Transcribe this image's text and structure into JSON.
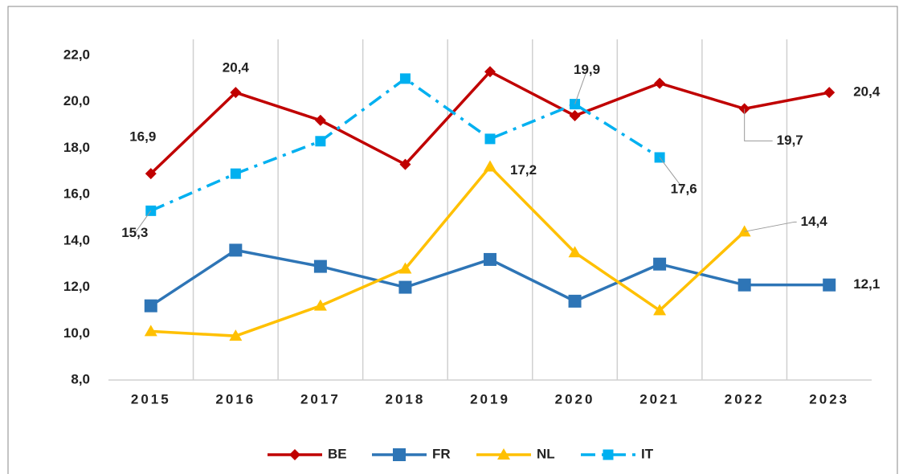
{
  "chart_data": {
    "type": "line",
    "categories": [
      "2015",
      "2016",
      "2017",
      "2018",
      "2019",
      "2020",
      "2021",
      "2022",
      "2023"
    ],
    "series": [
      {
        "name": "BE",
        "color": "#c00000",
        "marker": "diamond",
        "dash": "solid",
        "values": [
          16.9,
          20.4,
          19.2,
          17.3,
          21.3,
          19.4,
          20.8,
          19.7,
          20.4
        ],
        "value_labels": [
          "16,9",
          "20,4",
          null,
          null,
          null,
          null,
          null,
          "19,7",
          "20,4"
        ]
      },
      {
        "name": "FR",
        "color": "#2e75b6",
        "marker": "square",
        "dash": "solid",
        "values": [
          11.2,
          13.6,
          12.9,
          12.0,
          13.2,
          11.4,
          13.0,
          12.1,
          12.1
        ],
        "value_labels": [
          null,
          null,
          null,
          null,
          null,
          null,
          null,
          null,
          "12,1"
        ]
      },
      {
        "name": "NL",
        "color": "#ffc000",
        "marker": "triangle",
        "dash": "solid",
        "values": [
          10.1,
          9.9,
          11.2,
          12.8,
          17.2,
          13.5,
          11.0,
          14.4,
          null
        ],
        "value_labels": [
          null,
          null,
          null,
          null,
          "17,2",
          null,
          null,
          "14,4",
          null
        ]
      },
      {
        "name": "IT",
        "color": "#00b0f0",
        "marker": "square",
        "dash": "dashdot",
        "values": [
          15.3,
          16.9,
          18.3,
          21.0,
          18.4,
          19.9,
          17.6,
          null,
          null
        ],
        "value_labels": [
          "15,3",
          null,
          null,
          null,
          null,
          "19,9",
          "17,6",
          null,
          null
        ]
      }
    ],
    "ylim": [
      8,
      22
    ],
    "yticks": [
      {
        "value": 8,
        "label": "8,0"
      },
      {
        "value": 10,
        "label": "10,0"
      },
      {
        "value": 12,
        "label": "12,0"
      },
      {
        "value": 14,
        "label": "14,0"
      },
      {
        "value": 16,
        "label": "16,0"
      },
      {
        "value": 18,
        "label": "18,0"
      },
      {
        "value": 20,
        "label": "20,0"
      },
      {
        "value": 22,
        "label": "22,0"
      }
    ],
    "grid": "vertical",
    "legend": "bottom"
  }
}
